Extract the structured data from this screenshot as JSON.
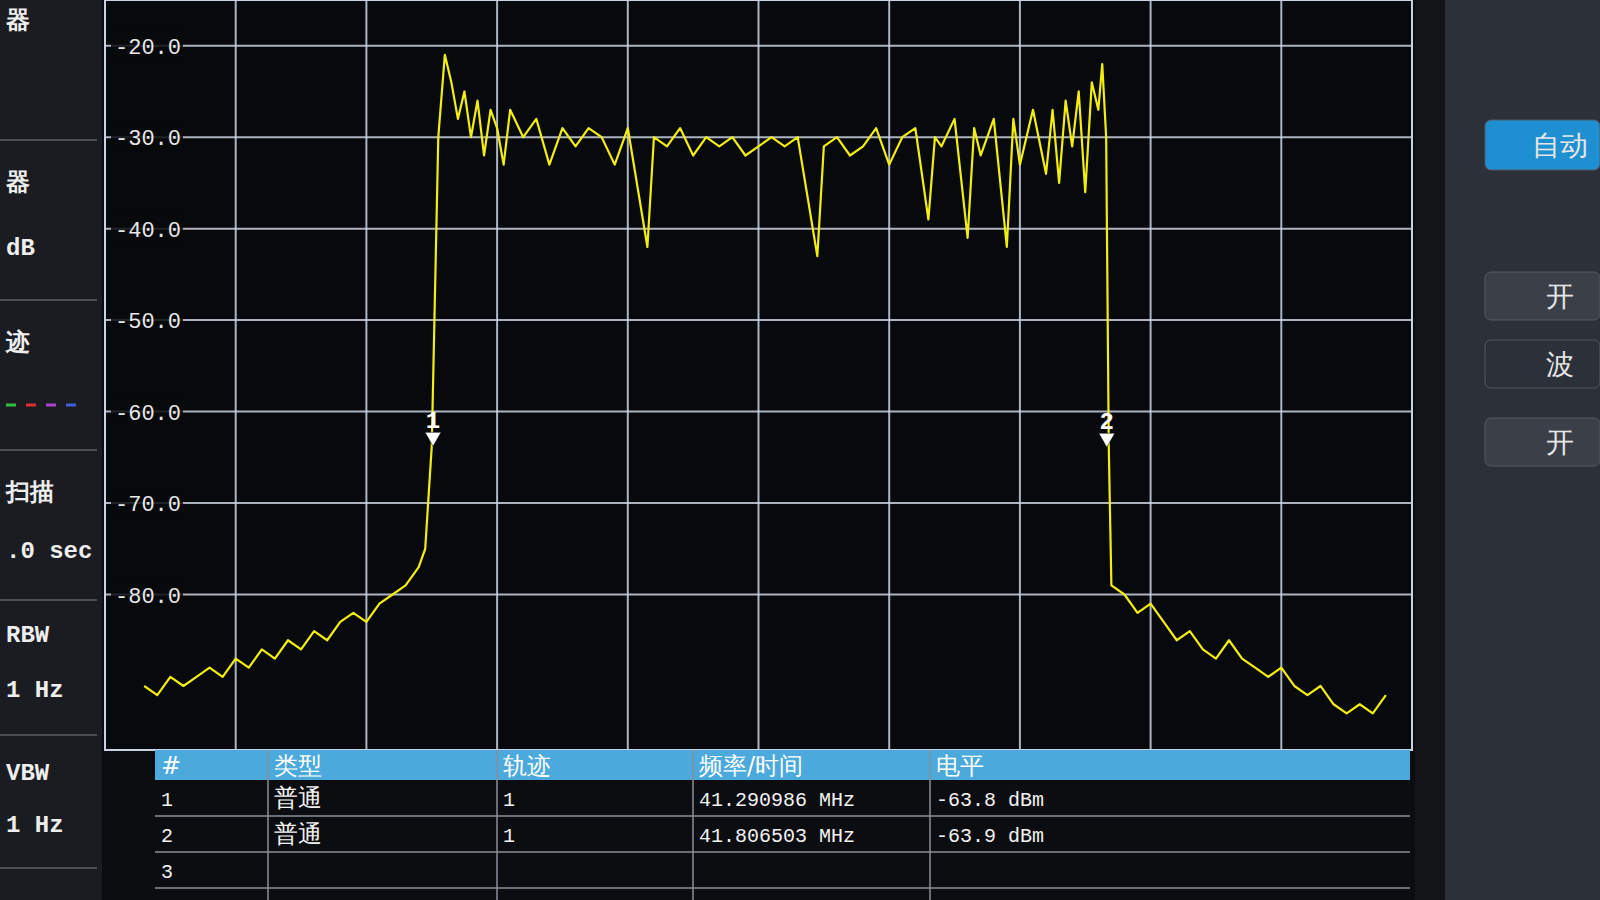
{
  "chart_data": {
    "type": "line",
    "tick_labels": "y",
    "grid": true,
    "xlim": [
      41.04,
      42.04
    ],
    "xticks": [
      41.14,
      41.24,
      41.34,
      41.44,
      41.54,
      41.64,
      41.74,
      41.84,
      41.94
    ],
    "ylim": [
      -97,
      -15
    ],
    "yticks": [
      {
        "value": -20,
        "label": "-20.0"
      },
      {
        "value": -30,
        "label": "-30.0"
      },
      {
        "value": -40,
        "label": "-40.0"
      },
      {
        "value": -50,
        "label": "-50.0"
      },
      {
        "value": -60,
        "label": "-60.0"
      },
      {
        "value": -70,
        "label": "-70.0"
      },
      {
        "value": -80,
        "label": "-80.0"
      }
    ],
    "series": [
      {
        "type": "line",
        "color": "#f2ee10",
        "line_style": "solid",
        "x": [
          41.07,
          41.08,
          41.09,
          41.1,
          41.11,
          41.12,
          41.13,
          41.14,
          41.15,
          41.16,
          41.17,
          41.18,
          41.19,
          41.2,
          41.21,
          41.22,
          41.23,
          41.24,
          41.25,
          41.26,
          41.27,
          41.28,
          41.285,
          41.29,
          41.295,
          41.3,
          41.305,
          41.31,
          41.315,
          41.32,
          41.325,
          41.33,
          41.335,
          41.34,
          41.345,
          41.35,
          41.36,
          41.37,
          41.38,
          41.39,
          41.4,
          41.41,
          41.42,
          41.43,
          41.44,
          41.455,
          41.46,
          41.47,
          41.48,
          41.49,
          41.5,
          41.51,
          41.52,
          41.53,
          41.54,
          41.55,
          41.56,
          41.57,
          41.585,
          41.59,
          41.6,
          41.61,
          41.62,
          41.63,
          41.64,
          41.65,
          41.66,
          41.67,
          41.675,
          41.68,
          41.69,
          41.7,
          41.705,
          41.71,
          41.72,
          41.73,
          41.735,
          41.74,
          41.75,
          41.76,
          41.765,
          41.77,
          41.775,
          41.78,
          41.785,
          41.79,
          41.795,
          41.8,
          41.803,
          41.806,
          41.808,
          41.81,
          41.82,
          41.83,
          41.84,
          41.85,
          41.86,
          41.87,
          41.88,
          41.89,
          41.9,
          41.91,
          41.92,
          41.93,
          41.94,
          41.95,
          41.96,
          41.97,
          41.98,
          41.99,
          42.0,
          42.01,
          42.02
        ],
        "values": [
          -90,
          -91,
          -89,
          -90,
          -89,
          -88,
          -89,
          -87,
          -88,
          -86,
          -87,
          -85,
          -86,
          -84,
          -85,
          -83,
          -82,
          -83,
          -81,
          -80,
          -79,
          -77,
          -75,
          -63.8,
          -30,
          -21,
          -24,
          -28,
          -25,
          -30,
          -26,
          -32,
          -27,
          -29,
          -33,
          -27,
          -30,
          -28,
          -33,
          -29,
          -31,
          -29,
          -30,
          -33,
          -29,
          -42,
          -30,
          -31,
          -29,
          -32,
          -30,
          -31,
          -30,
          -32,
          -31,
          -30,
          -31,
          -30,
          -43,
          -31,
          -30,
          -32,
          -31,
          -29,
          -33,
          -30,
          -29,
          -39,
          -30,
          -31,
          -28,
          -41,
          -29,
          -32,
          -28,
          -42,
          -28,
          -33,
          -27,
          -34,
          -27,
          -35,
          -26,
          -31,
          -25,
          -36,
          -24,
          -27,
          -22,
          -30,
          -63.9,
          -79,
          -80,
          -82,
          -81,
          -83,
          -85,
          -84,
          -86,
          -87,
          -85,
          -87,
          -88,
          -89,
          -88,
          -90,
          -91,
          -90,
          -92,
          -93,
          -92,
          -93,
          -91
        ]
      },
      {
        "type": "scatter",
        "marker": "arrow",
        "color": "#ffffff",
        "x": [
          41.290986,
          41.806503
        ],
        "values": [
          -63.8,
          -63.9
        ],
        "labels": [
          "1",
          "2"
        ]
      }
    ]
  },
  "left_panel": [
    "器",
    "器",
    "dB",
    "迹",
    "扫描",
    ".0 sec",
    "RBW",
    "1 Hz",
    "VBW",
    "1 Hz"
  ],
  "right_panel": [
    "自动",
    "开",
    "波",
    "开"
  ],
  "marker_table": {
    "headers": [
      "#",
      "类型",
      "轨迹",
      "频率/时间",
      "电平"
    ],
    "rows": [
      [
        "1",
        "普通",
        "1",
        "41.290986 MHz",
        "-63.8 dBm"
      ],
      [
        "2",
        "普通",
        "1",
        "41.806503 MHz",
        "-63.9 dBm"
      ],
      [
        "3"
      ]
    ]
  }
}
